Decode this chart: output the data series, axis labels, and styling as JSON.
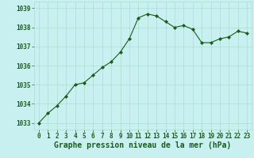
{
  "x": [
    0,
    1,
    2,
    3,
    4,
    5,
    6,
    7,
    8,
    9,
    10,
    11,
    12,
    13,
    14,
    15,
    16,
    17,
    18,
    19,
    20,
    21,
    22,
    23
  ],
  "y": [
    1033.0,
    1033.5,
    1033.9,
    1034.4,
    1035.0,
    1035.1,
    1035.5,
    1035.9,
    1036.2,
    1036.7,
    1037.4,
    1038.5,
    1038.7,
    1038.6,
    1038.3,
    1038.0,
    1038.1,
    1037.9,
    1037.2,
    1037.2,
    1037.4,
    1037.5,
    1037.8,
    1037.7
  ],
  "line_color": "#1a5c1a",
  "marker": "D",
  "marker_size": 2.0,
  "bg_color": "#c8f0f0",
  "grid_color": "#aaddcc",
  "xlabel": "Graphe pression niveau de la mer (hPa)",
  "xlabel_color": "#1a5c1a",
  "xlabel_fontsize": 7,
  "tick_color": "#1a5c1a",
  "tick_fontsize": 5.5,
  "ytick_labels": [
    1033,
    1034,
    1035,
    1036,
    1037,
    1038,
    1039
  ],
  "ylim": [
    1032.65,
    1039.35
  ],
  "xlim": [
    -0.5,
    23.5
  ],
  "line_width": 0.8
}
